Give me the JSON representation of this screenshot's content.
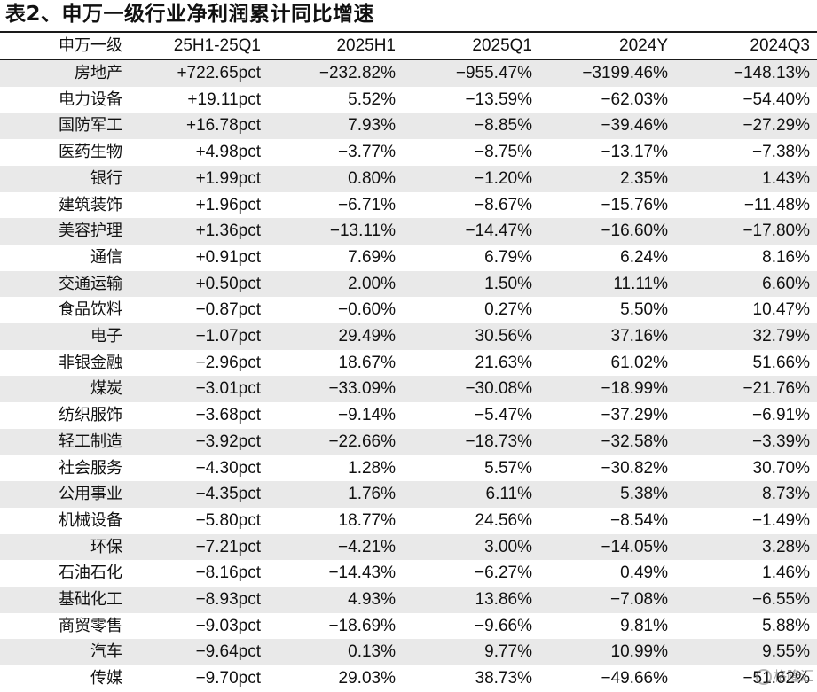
{
  "title": "表2、申万一级行业净利润累计同比增速",
  "headers": [
    "申万一级",
    "25H1-25Q1",
    "2025H1",
    "2025Q1",
    "2024Y",
    "2024Q3"
  ],
  "rows": [
    [
      "房地产",
      "+722.65pct",
      "−232.82%",
      "−955.47%",
      "−3199.46%",
      "−148.13%"
    ],
    [
      "电力设备",
      "+19.11pct",
      "5.52%",
      "−13.59%",
      "−62.03%",
      "−54.40%"
    ],
    [
      "国防军工",
      "+16.78pct",
      "7.93%",
      "−8.85%",
      "−39.46%",
      "−27.29%"
    ],
    [
      "医药生物",
      "+4.98pct",
      "−3.77%",
      "−8.75%",
      "−13.17%",
      "−7.38%"
    ],
    [
      "银行",
      "+1.99pct",
      "0.80%",
      "−1.20%",
      "2.35%",
      "1.43%"
    ],
    [
      "建筑装饰",
      "+1.96pct",
      "−6.71%",
      "−8.67%",
      "−15.76%",
      "−11.48%"
    ],
    [
      "美容护理",
      "+1.36pct",
      "−13.11%",
      "−14.47%",
      "−16.60%",
      "−17.80%"
    ],
    [
      "通信",
      "+0.91pct",
      "7.69%",
      "6.79%",
      "6.24%",
      "8.16%"
    ],
    [
      "交通运输",
      "+0.50pct",
      "2.00%",
      "1.50%",
      "11.11%",
      "6.60%"
    ],
    [
      "食品饮料",
      "−0.87pct",
      "−0.60%",
      "0.27%",
      "5.50%",
      "10.47%"
    ],
    [
      "电子",
      "−1.07pct",
      "29.49%",
      "30.56%",
      "37.16%",
      "32.79%"
    ],
    [
      "非银金融",
      "−2.96pct",
      "18.67%",
      "21.63%",
      "61.02%",
      "51.66%"
    ],
    [
      "煤炭",
      "−3.01pct",
      "−33.09%",
      "−30.08%",
      "−18.99%",
      "−21.76%"
    ],
    [
      "纺织服饰",
      "−3.68pct",
      "−9.14%",
      "−5.47%",
      "−37.29%",
      "−6.91%"
    ],
    [
      "轻工制造",
      "−3.92pct",
      "−22.66%",
      "−18.73%",
      "−32.58%",
      "−3.39%"
    ],
    [
      "社会服务",
      "−4.30pct",
      "1.28%",
      "5.57%",
      "−30.82%",
      "30.70%"
    ],
    [
      "公用事业",
      "−4.35pct",
      "1.76%",
      "6.11%",
      "5.38%",
      "8.73%"
    ],
    [
      "机械设备",
      "−5.80pct",
      "18.77%",
      "24.56%",
      "−8.54%",
      "−1.49%"
    ],
    [
      "环保",
      "−7.21pct",
      "−4.21%",
      "3.00%",
      "−14.05%",
      "3.28%"
    ],
    [
      "石油石化",
      "−8.16pct",
      "−14.43%",
      "−6.27%",
      "0.49%",
      "1.46%"
    ],
    [
      "基础化工",
      "−8.93pct",
      "4.93%",
      "13.86%",
      "−7.08%",
      "−6.55%"
    ],
    [
      "商贸零售",
      "−9.03pct",
      "−18.69%",
      "−9.66%",
      "9.81%",
      "5.88%"
    ],
    [
      "汽车",
      "−9.64pct",
      "0.13%",
      "9.77%",
      "10.99%",
      "9.55%"
    ],
    [
      "传媒",
      "−9.70pct",
      "29.03%",
      "38.73%",
      "−49.66%",
      "−51.62%"
    ]
  ],
  "watermark": {
    "icon": "logo-icon",
    "text": "格隆汇"
  },
  "colors": {
    "stripe": "#e9e9e9",
    "rule": "#1a1a1a"
  }
}
